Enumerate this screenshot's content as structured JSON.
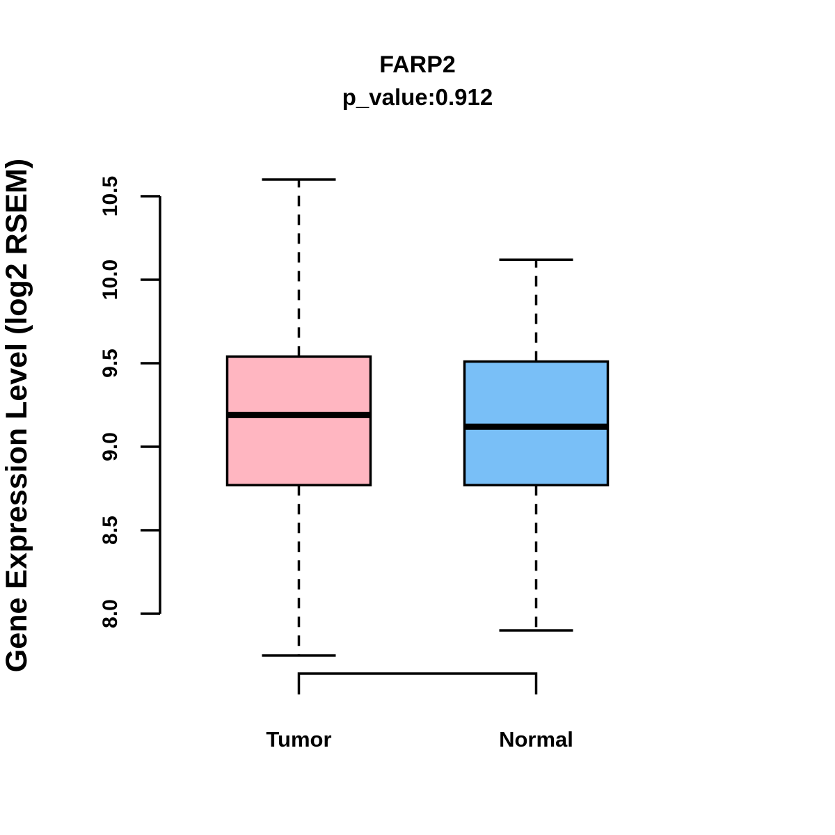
{
  "chart_data": {
    "type": "boxplot",
    "title": "FARP2",
    "subtitle": "p_value:0.912",
    "ylabel": "Gene Expression Level (log2 RSEM)",
    "xlabel": "",
    "grid": false,
    "legend": "none",
    "ylim": [
      7.55,
      10.75
    ],
    "yticks": [
      8.0,
      8.5,
      9.0,
      9.5,
      10.0,
      10.5
    ],
    "ytick_labels": [
      "8.0",
      "8.5",
      "9.0",
      "9.5",
      "10.0",
      "10.5"
    ],
    "categories": [
      "Tumor",
      "Normal"
    ],
    "series": [
      {
        "name": "Tumor",
        "fill_color": "#FFB6C1",
        "stats": {
          "whisker_low": 7.75,
          "q1": 8.77,
          "median": 9.19,
          "q3": 9.54,
          "whisker_high": 10.6
        },
        "outliers": []
      },
      {
        "name": "Normal",
        "fill_color": "#79BFF7",
        "stats": {
          "whisker_low": 7.9,
          "q1": 8.77,
          "median": 9.12,
          "q3": 9.51,
          "whisker_high": 10.12
        },
        "outliers": []
      }
    ],
    "line_color": "#000000"
  }
}
